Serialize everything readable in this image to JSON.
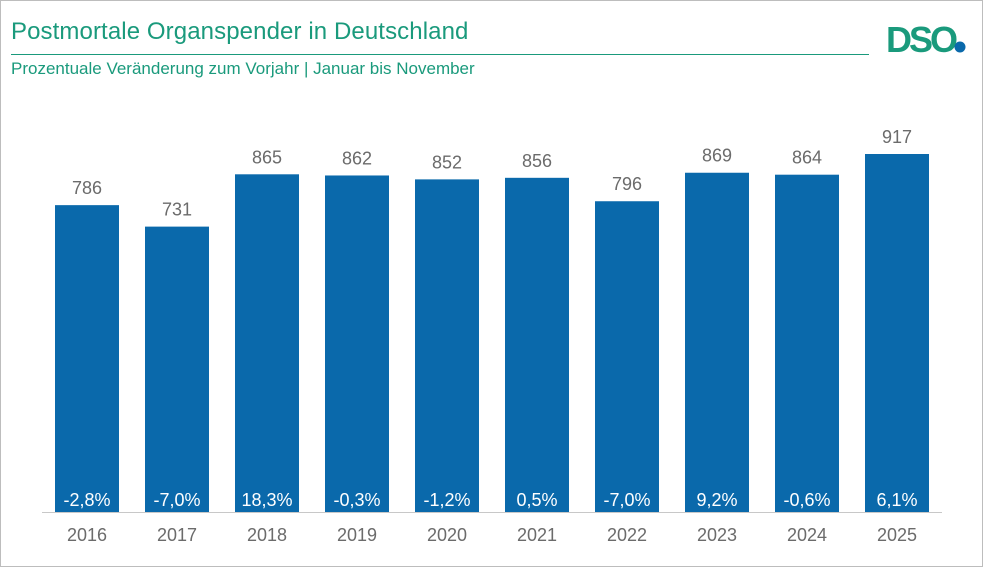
{
  "header": {
    "title": "Postmortale Organspender in Deutschland",
    "subtitle": "Prozentuale Veränderung zum Vorjahr | Januar bis November"
  },
  "logo": {
    "text": "DSO",
    "colors": {
      "letters": "#1a9a7c",
      "dot": "#0a69ab"
    }
  },
  "colors": {
    "bar": "#0a69ab",
    "accent": "#1a9a7c",
    "label": "#6b6b6b"
  },
  "chart_data": {
    "type": "bar",
    "title": "Postmortale Organspender in Deutschland",
    "subtitle": "Prozentuale Veränderung zum Vorjahr | Januar bis November",
    "categories": [
      "2016",
      "2017",
      "2018",
      "2019",
      "2020",
      "2021",
      "2022",
      "2023",
      "2024",
      "2025"
    ],
    "values": [
      786,
      731,
      865,
      862,
      852,
      856,
      796,
      869,
      864,
      917
    ],
    "change_labels": [
      "-2,8%",
      "-7,0%",
      "18,3%",
      "-0,3%",
      "-1,2%",
      "0,5%",
      "-7,0%",
      "9,2%",
      "-0,6%",
      "6,1%"
    ],
    "ylim": [
      0,
      917
    ],
    "grid": false,
    "legend": "none"
  }
}
